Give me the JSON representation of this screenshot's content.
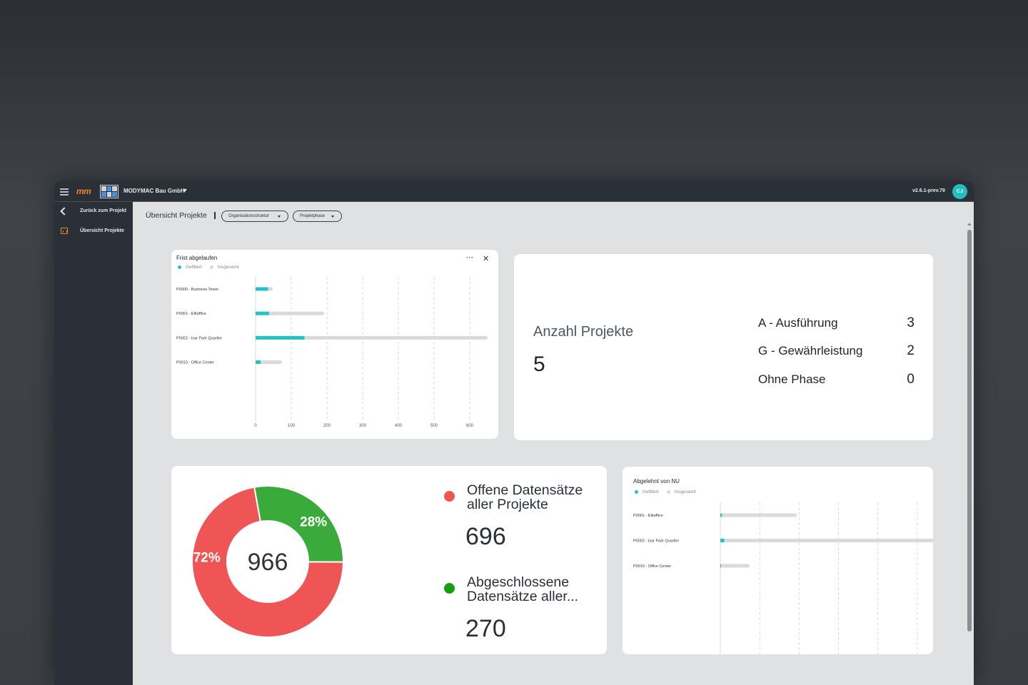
{
  "topbar": {
    "logo_text": "mm",
    "company": "MODYMAC Bau GmbH",
    "version": "v2.6.1-prev.79",
    "avatar_initials": "CJ"
  },
  "sidebar": {
    "items": [
      {
        "label": "Zurück zum Projekt",
        "icon": "chevron-left-icon"
      },
      {
        "label": "Übersicht Projekte",
        "icon": "chart-icon"
      }
    ]
  },
  "header": {
    "title": "Übersicht Projekte",
    "filters": [
      {
        "label": "Organisationsstruktur"
      },
      {
        "label": "Projektphase"
      }
    ]
  },
  "colors": {
    "accent_teal": "#23c3c7",
    "bar_total": "#dadada",
    "open_red": "#f05555",
    "closed_green": "#3aaa3a",
    "brand_orange": "#e8842a"
  },
  "frist_card": {
    "title": "Frist abgelaufen",
    "legend": [
      "Gefiltert",
      "Insgesamt"
    ]
  },
  "abgelehnt_card": {
    "title": "Abgelehnt von NU",
    "legend": [
      "Gefiltert",
      "Insgesamt"
    ]
  },
  "projekte_card": {
    "label": "Anzahl Projekte",
    "value": "5",
    "phases": [
      {
        "name": "A - Ausführung",
        "value": "3"
      },
      {
        "name": "G - Gewährleistung",
        "value": "2"
      },
      {
        "name": "Ohne Phase",
        "value": "0"
      }
    ]
  },
  "donut_card": {
    "total": "966",
    "segments": [
      {
        "label": "Offene Datensätze aller Projekte",
        "value": "696",
        "percent_label": "72%"
      },
      {
        "label": "Abgeschlossene Datensätze aller...",
        "value": "270",
        "percent_label": "28%"
      }
    ]
  },
  "chart_data": [
    {
      "type": "bar",
      "title": "Frist abgelaufen",
      "categories": [
        "P0000 - Business Tower",
        "P0001  - Elboffice",
        "P0002 - Isar Park Quartier",
        "P0010 - Office Center"
      ],
      "series": [
        {
          "name": "Gefiltert",
          "values": [
            35,
            38,
            137,
            14
          ]
        },
        {
          "name": "Insgesamt",
          "values": [
            48,
            192,
            650,
            74
          ]
        }
      ],
      "xticks": [
        "0",
        "100",
        "200",
        "300",
        "400",
        "500",
        "600"
      ],
      "xlim": [
        0,
        680
      ],
      "legend": "top-left",
      "grid": true
    },
    {
      "type": "bar",
      "title": "Abgelehnt von NU",
      "categories": [
        "P0001  - Elboffice",
        "P0002 - Isar Park Quartier",
        "P0010 - Office Center"
      ],
      "series": [
        {
          "name": "Gefiltert",
          "values": [
            2,
            5,
            1
          ]
        },
        {
          "name": "Insgesamt",
          "values": [
            97,
            275,
            37
          ]
        }
      ],
      "xlim": [
        0,
        270
      ],
      "legend": "top-left",
      "grid": true
    },
    {
      "type": "pie",
      "categories": [
        "Offene Datensätze aller Projekte",
        "Abgeschlossene Datensätze aller..."
      ],
      "values": [
        696,
        270
      ]
    }
  ]
}
